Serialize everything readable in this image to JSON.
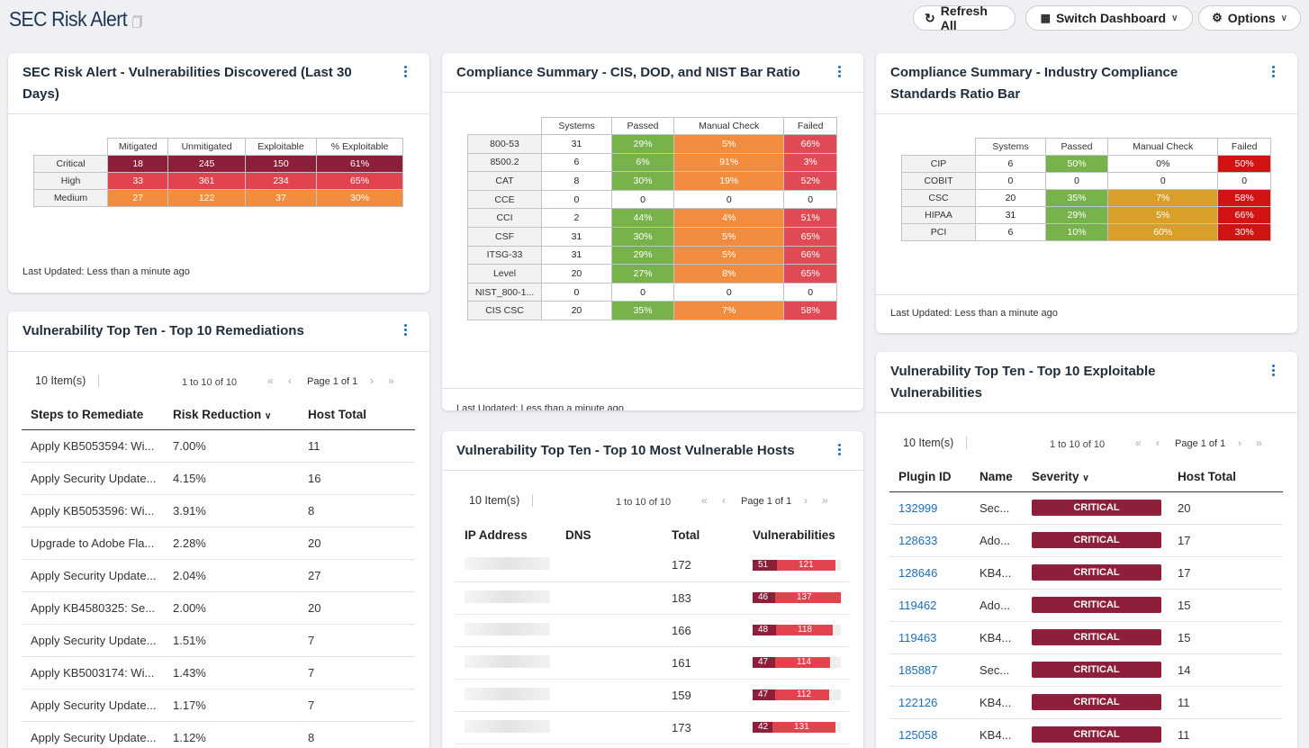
{
  "header": {
    "title": "SEC Risk Alert",
    "refresh_label": "Refresh All",
    "switch_label": "Switch Dashboard",
    "options_label": "Options"
  },
  "vuln_discovered": {
    "title_line1": "SEC Risk Alert - Vulnerabilities Discovered (Last 30",
    "title_line2": "Days)",
    "columns": [
      "Mitigated",
      "Unmitigated",
      "Exploitable",
      "% Exploitable"
    ],
    "rows": [
      {
        "label": "Critical",
        "values": [
          "18",
          "245",
          "150",
          "61%"
        ]
      },
      {
        "label": "High",
        "values": [
          "33",
          "361",
          "234",
          "65%"
        ]
      },
      {
        "label": "Medium",
        "values": [
          "27",
          "122",
          "37",
          "30%"
        ]
      }
    ],
    "updated": "Last Updated: Less than a minute ago"
  },
  "compliance_cis": {
    "title": "Compliance Summary - CIS, DOD, and NIST Bar Ratio",
    "columns": [
      "Systems",
      "Passed",
      "Manual Check",
      "Failed"
    ],
    "rows": [
      {
        "label": "800-53",
        "systems": "31",
        "passed": "29%",
        "manual": "5%",
        "failed": "66%"
      },
      {
        "label": "8500.2",
        "systems": "6",
        "passed": "6%",
        "manual": "91%",
        "failed": "3%"
      },
      {
        "label": "CAT",
        "systems": "8",
        "passed": "30%",
        "manual": "19%",
        "failed": "52%"
      },
      {
        "label": "CCE",
        "systems": "0",
        "passed": "0",
        "manual": "0",
        "failed": "0"
      },
      {
        "label": "CCI",
        "systems": "2",
        "passed": "44%",
        "manual": "4%",
        "failed": "51%"
      },
      {
        "label": "CSF",
        "systems": "31",
        "passed": "30%",
        "manual": "5%",
        "failed": "65%"
      },
      {
        "label": "ITSG-33",
        "systems": "31",
        "passed": "29%",
        "manual": "5%",
        "failed": "66%"
      },
      {
        "label": "Level",
        "systems": "20",
        "passed": "27%",
        "manual": "8%",
        "failed": "65%"
      },
      {
        "label": "NIST_800-1...",
        "systems": "0",
        "passed": "0",
        "manual": "0",
        "failed": "0"
      },
      {
        "label": "CIS CSC",
        "systems": "20",
        "passed": "35%",
        "manual": "7%",
        "failed": "58%"
      }
    ],
    "updated": "Last Updated: Less than a minute ago"
  },
  "compliance_industry": {
    "title_line1": "Compliance Summary - Industry Compliance",
    "title_line2": "Standards Ratio Bar",
    "columns": [
      "Systems",
      "Passed",
      "Manual Check",
      "Failed"
    ],
    "rows": [
      {
        "label": "CIP",
        "systems": "6",
        "passed": "50%",
        "manual": "0%",
        "failed": "50%"
      },
      {
        "label": "COBIT",
        "systems": "0",
        "passed": "0",
        "manual": "0",
        "failed": "0"
      },
      {
        "label": "CSC",
        "systems": "20",
        "passed": "35%",
        "manual": "7%",
        "failed": "58%"
      },
      {
        "label": "HIPAA",
        "systems": "31",
        "passed": "29%",
        "manual": "5%",
        "failed": "66%"
      },
      {
        "label": "PCI",
        "systems": "6",
        "passed": "10%",
        "manual": "60%",
        "failed": "30%"
      }
    ],
    "updated": "Last Updated: Less than a minute ago"
  },
  "remediations": {
    "title": "Vulnerability Top Ten - Top 10 Remediations",
    "count": "10 Item(s)",
    "range": "1 to 10 of 10",
    "page": "Page 1 of 1",
    "columns": [
      "Steps to Remediate",
      "Risk Reduction",
      "Host Total"
    ],
    "rows": [
      {
        "step": "Apply KB5053594: Wi...",
        "risk": "7.00%",
        "hosts": "11"
      },
      {
        "step": "Apply Security Update...",
        "risk": "4.15%",
        "hosts": "16"
      },
      {
        "step": "Apply KB5053596: Wi...",
        "risk": "3.91%",
        "hosts": "8"
      },
      {
        "step": "Upgrade to Adobe Fla...",
        "risk": "2.28%",
        "hosts": "20"
      },
      {
        "step": "Apply Security Update...",
        "risk": "2.04%",
        "hosts": "27"
      },
      {
        "step": "Apply KB4580325: Se...",
        "risk": "2.00%",
        "hosts": "20"
      },
      {
        "step": "Apply Security Update...",
        "risk": "1.51%",
        "hosts": "7"
      },
      {
        "step": "Apply KB5003174: Wi...",
        "risk": "1.43%",
        "hosts": "7"
      },
      {
        "step": "Apply Security Update...",
        "risk": "1.17%",
        "hosts": "7"
      },
      {
        "step": "Apply Security Update...",
        "risk": "1.12%",
        "hosts": "8"
      }
    ]
  },
  "vuln_hosts": {
    "title": "Vulnerability Top Ten - Top 10 Most Vulnerable Hosts",
    "count": "10 Item(s)",
    "range": "1 to 10 of 10",
    "page": "Page 1 of 1",
    "columns": [
      "IP Address",
      "DNS",
      "Total",
      "Vulnerabilities"
    ],
    "rows": [
      {
        "total": "172",
        "crit": "51",
        "high": "121"
      },
      {
        "total": "183",
        "crit": "46",
        "high": "137"
      },
      {
        "total": "166",
        "crit": "48",
        "high": "118"
      },
      {
        "total": "161",
        "crit": "47",
        "high": "114"
      },
      {
        "total": "159",
        "crit": "47",
        "high": "112"
      },
      {
        "total": "173",
        "crit": "42",
        "high": "131"
      }
    ]
  },
  "exploitable": {
    "title_line1": "Vulnerability Top Ten - Top 10 Exploitable",
    "title_line2": "Vulnerabilities",
    "count": "10 Item(s)",
    "range": "1 to 10 of 10",
    "page": "Page 1 of 1",
    "columns": [
      "Plugin ID",
      "Name",
      "Severity",
      "Host Total"
    ],
    "rows": [
      {
        "id": "132999",
        "name": "Sec...",
        "severity": "CRITICAL",
        "hosts": "20"
      },
      {
        "id": "128633",
        "name": "Ado...",
        "severity": "CRITICAL",
        "hosts": "17"
      },
      {
        "id": "128646",
        "name": "KB4...",
        "severity": "CRITICAL",
        "hosts": "17"
      },
      {
        "id": "119462",
        "name": "Ado...",
        "severity": "CRITICAL",
        "hosts": "15"
      },
      {
        "id": "119463",
        "name": "KB4...",
        "severity": "CRITICAL",
        "hosts": "15"
      },
      {
        "id": "185887",
        "name": "Sec...",
        "severity": "CRITICAL",
        "hosts": "14"
      },
      {
        "id": "122126",
        "name": "KB4...",
        "severity": "CRITICAL",
        "hosts": "11"
      },
      {
        "id": "125058",
        "name": "KB4...",
        "severity": "CRITICAL",
        "hosts": "11"
      }
    ]
  },
  "colors": {
    "critical": "#8e1f3b",
    "high": "#e1434f",
    "medium": "#f28d3f",
    "passed": "#78b24a",
    "link": "#1c6ebc"
  }
}
